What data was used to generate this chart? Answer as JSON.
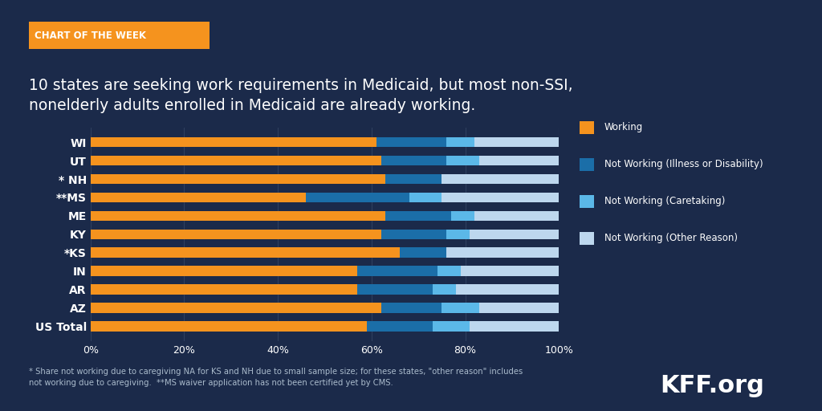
{
  "title_label": "CHART OF THE WEEK",
  "title": "10 states are seeking work requirements in Medicaid, but most non-SSI,\nnonelderly adults enrolled in Medicaid are already working.",
  "states": [
    "US Total",
    "AZ",
    "AR",
    "IN",
    "*KS",
    "KY",
    "ME",
    "**MS",
    "* NH",
    "UT",
    "WI"
  ],
  "working": [
    59,
    62,
    57,
    57,
    66,
    62,
    63,
    46,
    63,
    62,
    61
  ],
  "illness_disability": [
    14,
    13,
    16,
    17,
    10,
    14,
    14,
    22,
    12,
    14,
    15
  ],
  "caretaking": [
    8,
    8,
    5,
    5,
    0,
    5,
    5,
    7,
    0,
    7,
    6
  ],
  "other_reason": [
    19,
    17,
    22,
    21,
    24,
    19,
    18,
    25,
    25,
    17,
    18
  ],
  "colors": {
    "working": "#F5931E",
    "illness_disability": "#1B6EA8",
    "caretaking": "#5BB8E8",
    "other_reason": "#BDD7EE"
  },
  "background_color": "#1B2A4A",
  "text_color": "#FFFFFF",
  "note": "* Share not working due to caregiving NA for KS and NH due to small sample size; for these states, \"other reason\" includes\nnot working due to caregiving.  **MS waiver application has not been certified yet by CMS.",
  "kff_label": "KFF.org",
  "legend_labels": [
    "Working",
    "Not Working (Illness or Disability)",
    "Not Working (Caretaking)",
    "Not Working (Other Reason)"
  ],
  "chart_of_week_bg": "#F5931E"
}
